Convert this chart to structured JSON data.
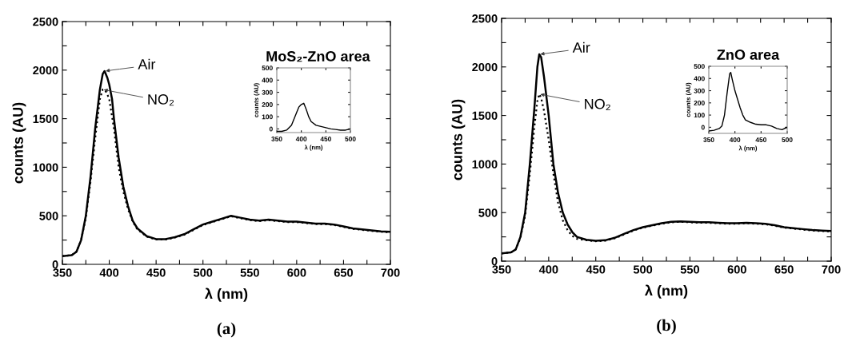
{
  "chart_data": [
    {
      "type": "line",
      "xlabel": "λ (nm)",
      "ylabel": "counts (AU)",
      "annotations": [
        "(a)"
      ],
      "legend": false,
      "grid": false,
      "xlim": [
        350,
        700
      ],
      "ylim": [
        0,
        2500
      ],
      "xticks": [
        350,
        {
          "value": 375,
          "label": null
        },
        400,
        {
          "value": 425,
          "label": null
        },
        450,
        {
          "value": 475,
          "label": null
        },
        500,
        {
          "value": 525,
          "label": null
        },
        550,
        {
          "value": 575,
          "label": null
        },
        600,
        {
          "value": 625,
          "label": null
        },
        650,
        {
          "value": 675,
          "label": null
        },
        700
      ],
      "yticks": [
        0,
        {
          "value": 250,
          "label": null
        },
        500,
        {
          "value": 750,
          "label": null
        },
        1000,
        {
          "value": 1250,
          "label": null
        },
        1500,
        {
          "value": 1750,
          "label": null
        },
        2000,
        {
          "value": 2250,
          "label": null
        },
        2500
      ],
      "series": [
        {
          "name": "Air",
          "color": "#000000",
          "line_style": "solid",
          "x": [
            350,
            360,
            365,
            370,
            375,
            380,
            385,
            390,
            393,
            395,
            398,
            400,
            403,
            405,
            410,
            415,
            420,
            425,
            430,
            440,
            450,
            460,
            470,
            480,
            490,
            500,
            510,
            520,
            530,
            540,
            550,
            560,
            570,
            580,
            590,
            600,
            610,
            620,
            630,
            640,
            650,
            660,
            670,
            680,
            690,
            700
          ],
          "values": [
            85,
            95,
            130,
            250,
            500,
            900,
            1400,
            1800,
            1960,
            1990,
            1920,
            1850,
            1700,
            1500,
            1100,
            800,
            600,
            450,
            370,
            290,
            260,
            260,
            280,
            310,
            360,
            410,
            440,
            470,
            500,
            480,
            460,
            450,
            460,
            450,
            440,
            440,
            430,
            420,
            420,
            410,
            390,
            370,
            360,
            350,
            340,
            335
          ]
        },
        {
          "name": "NO₂",
          "color": "#000000",
          "line_style": "dotted",
          "x": [
            350,
            360,
            365,
            370,
            375,
            380,
            385,
            390,
            393,
            395,
            398,
            400,
            405,
            410,
            415,
            420,
            425,
            430,
            440,
            450,
            460,
            470,
            480,
            490,
            500,
            510,
            520,
            530,
            540,
            550,
            560,
            570,
            580,
            590,
            600,
            610,
            620,
            630,
            640,
            650,
            660,
            670,
            680,
            690,
            700
          ],
          "values": [
            85,
            95,
            130,
            250,
            480,
            850,
            1300,
            1700,
            1800,
            1800,
            1750,
            1700,
            1400,
            1000,
            750,
            570,
            440,
            360,
            285,
            255,
            255,
            275,
            305,
            355,
            405,
            435,
            465,
            495,
            475,
            455,
            445,
            455,
            445,
            435,
            435,
            425,
            415,
            415,
            405,
            385,
            365,
            355,
            345,
            335,
            330
          ]
        }
      ]
    },
    {
      "type": "line",
      "title": "MoS₂-ZnO area",
      "xlabel": "λ (nm)",
      "ylabel": "counts (AU)",
      "legend": false,
      "grid": false,
      "xlim": [
        350,
        500
      ],
      "ylim": [
        -30,
        500
      ],
      "xticks": [
        350,
        400,
        450,
        500
      ],
      "yticks": [
        0,
        100,
        200,
        300,
        400,
        500
      ],
      "series": [
        {
          "color": "#000000",
          "line_style": "solid",
          "x": [
            350,
            360,
            370,
            380,
            390,
            395,
            400,
            405,
            410,
            415,
            420,
            430,
            440,
            450,
            460,
            470,
            480,
            490,
            500
          ],
          "values": [
            -20,
            -20,
            -10,
            30,
            130,
            180,
            200,
            210,
            160,
            100,
            60,
            30,
            20,
            10,
            0,
            -5,
            -10,
            -10,
            0
          ]
        }
      ]
    },
    {
      "type": "line",
      "xlabel": "λ (nm)",
      "ylabel": "counts (AU)",
      "annotations": [
        "(b)"
      ],
      "legend": false,
      "grid": false,
      "xlim": [
        350,
        700
      ],
      "ylim": [
        0,
        2500
      ],
      "xticks": [
        350,
        {
          "value": 375,
          "label": null
        },
        400,
        {
          "value": 425,
          "label": null
        },
        450,
        {
          "value": 475,
          "label": null
        },
        500,
        {
          "value": 525,
          "label": null
        },
        550,
        {
          "value": 575,
          "label": null
        },
        600,
        {
          "value": 625,
          "label": null
        },
        650,
        {
          "value": 675,
          "label": null
        },
        700
      ],
      "yticks": [
        0,
        {
          "value": 250,
          "label": null
        },
        500,
        {
          "value": 750,
          "label": null
        },
        1000,
        {
          "value": 1250,
          "label": null
        },
        1500,
        {
          "value": 1750,
          "label": null
        },
        2000,
        {
          "value": 2250,
          "label": null
        },
        2500
      ],
      "series": [
        {
          "name": "Air",
          "color": "#000000",
          "line_style": "solid",
          "x": [
            350,
            360,
            365,
            370,
            375,
            380,
            385,
            388,
            390,
            392,
            395,
            400,
            405,
            410,
            415,
            420,
            425,
            430,
            440,
            450,
            460,
            470,
            480,
            490,
            500,
            510,
            520,
            530,
            540,
            550,
            560,
            570,
            580,
            590,
            600,
            610,
            620,
            630,
            640,
            650,
            660,
            670,
            680,
            690,
            700
          ],
          "values": [
            80,
            90,
            120,
            250,
            500,
            1000,
            1600,
            2000,
            2130,
            2100,
            1900,
            1500,
            1000,
            700,
            500,
            380,
            300,
            250,
            220,
            210,
            215,
            240,
            280,
            320,
            350,
            370,
            390,
            405,
            410,
            405,
            400,
            400,
            395,
            390,
            390,
            395,
            390,
            385,
            370,
            350,
            340,
            330,
            320,
            315,
            310
          ]
        },
        {
          "name": "NO₂",
          "color": "#000000",
          "line_style": "dotted",
          "x": [
            350,
            360,
            365,
            370,
            375,
            380,
            385,
            388,
            390,
            392,
            395,
            400,
            405,
            410,
            415,
            420,
            425,
            430,
            440,
            450,
            460,
            470,
            480,
            490,
            500,
            510,
            520,
            530,
            540,
            550,
            560,
            570,
            580,
            590,
            600,
            610,
            620,
            630,
            640,
            650,
            660,
            670,
            680,
            690,
            700
          ],
          "values": [
            80,
            90,
            120,
            240,
            470,
            900,
            1400,
            1650,
            1720,
            1680,
            1550,
            1250,
            900,
            600,
            420,
            320,
            260,
            230,
            215,
            205,
            210,
            235,
            275,
            315,
            345,
            365,
            385,
            400,
            405,
            400,
            395,
            395,
            390,
            385,
            385,
            390,
            385,
            380,
            365,
            345,
            335,
            325,
            315,
            310,
            305
          ]
        }
      ]
    },
    {
      "type": "line",
      "title": "ZnO area",
      "xlabel": "λ (nm)",
      "ylabel": "counts (AU)",
      "legend": false,
      "grid": false,
      "xlim": [
        350,
        500
      ],
      "ylim": [
        -50,
        500
      ],
      "xticks": [
        350,
        400,
        450,
        500
      ],
      "yticks": [
        0,
        100,
        200,
        300,
        400,
        500
      ],
      "series": [
        {
          "color": "#000000",
          "line_style": "solid",
          "x": [
            350,
            360,
            370,
            375,
            380,
            385,
            390,
            392,
            395,
            400,
            405,
            410,
            415,
            420,
            430,
            440,
            450,
            460,
            470,
            480,
            490,
            500
          ],
          "values": [
            -30,
            -25,
            -10,
            10,
            100,
            280,
            440,
            450,
            390,
            300,
            230,
            160,
            100,
            60,
            40,
            25,
            20,
            20,
            10,
            -10,
            -20,
            0
          ]
        }
      ]
    }
  ]
}
